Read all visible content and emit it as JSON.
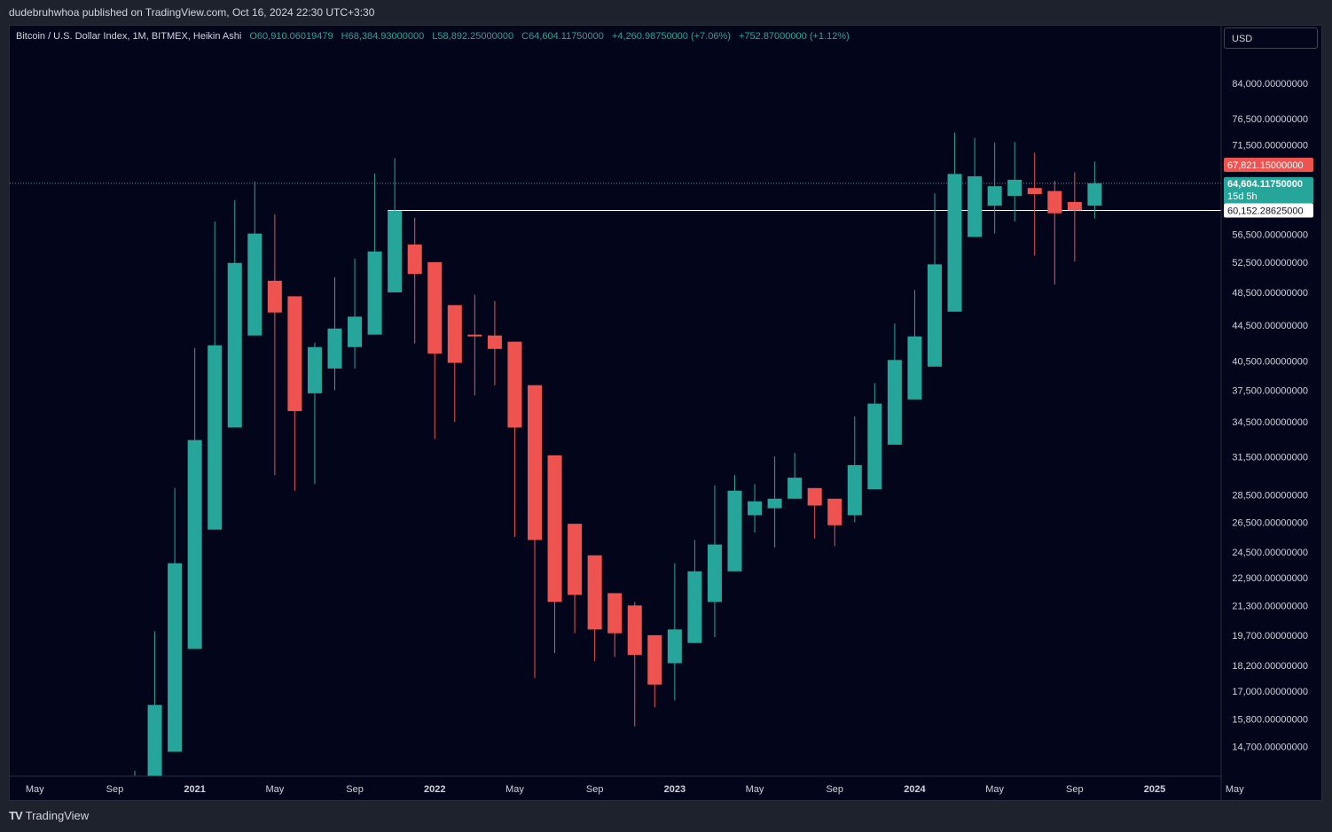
{
  "header": {
    "credit": "dudebruhwhoa published on TradingView.com, Oct 16, 2024 22:30 UTC+3:30"
  },
  "legend": {
    "symbol": "Bitcoin / U.S. Dollar Index, 1M, BITMEX, Heikin Ashi",
    "open": "O60,910.06019479",
    "high": "H68,384.93000000",
    "low": "L58,892.25000000",
    "close": "C64,604.11750000",
    "change": "+4,260.98750000 (+7.06%)",
    "change2": "+752.87000000 (+1.12%)"
  },
  "currency_button": "USD",
  "footer": {
    "brand": "TradingView",
    "brand_mark": "TV"
  },
  "colors": {
    "up": "#26a69a",
    "down": "#ef5350",
    "background": "#03051a",
    "panel": "#1e222d"
  },
  "chart_data": {
    "type": "candlestick",
    "style": "Heikin Ashi",
    "interval": "1M",
    "y_scale": "log",
    "ylim": [
      13600,
      92000
    ],
    "price_ticks": [
      "84,000.00000000",
      "76,500.00000000",
      "71,500.00000000",
      "60,152.28625000",
      "56,500.00000000",
      "52,500.00000000",
      "48,500.00000000",
      "44,500.00000000",
      "40,500.00000000",
      "37,500.00000000",
      "34,500.00000000",
      "31,500.00000000",
      "28,500.00000000",
      "26,500.00000000",
      "24,500.00000000",
      "22,900.00000000",
      "21,300.00000000",
      "19,700.00000000",
      "18,200.00000000",
      "17,000.00000000",
      "15,800.00000000",
      "14,700.00000000"
    ],
    "x_ticks": [
      "May",
      "Sep",
      "2021",
      "May",
      "Sep",
      "2022",
      "May",
      "Sep",
      "2023",
      "May",
      "Sep",
      "2024",
      "May",
      "Sep",
      "2025",
      "May"
    ],
    "price_labels": {
      "high_marker": "67,821.15000000",
      "last_price": "64,604.11750000",
      "countdown": "15d 5h",
      "horizontal_line": "60,152.28625000"
    },
    "horizontal_line_value": 60152.28625,
    "candles": [
      {
        "t": "2020-10",
        "o": 12300,
        "h": 13800,
        "l": 11000,
        "c": 12900
      },
      {
        "t": "2020-11",
        "o": 12600,
        "h": 19900,
        "l": 12200,
        "c": 16400
      },
      {
        "t": "2020-12",
        "o": 14500,
        "h": 29000,
        "l": 14500,
        "c": 23800
      },
      {
        "t": "2021-01",
        "o": 19000,
        "h": 41900,
        "l": 19000,
        "c": 32900
      },
      {
        "t": "2021-02",
        "o": 26000,
        "h": 58400,
        "l": 26000,
        "c": 42200
      },
      {
        "t": "2021-03",
        "o": 34000,
        "h": 61800,
        "l": 34000,
        "c": 52400
      },
      {
        "t": "2021-04",
        "o": 43300,
        "h": 64900,
        "l": 43300,
        "c": 56600
      },
      {
        "t": "2021-05",
        "o": 50000,
        "h": 59500,
        "l": 30000,
        "c": 46000
      },
      {
        "t": "2021-06",
        "o": 48000,
        "h": 48000,
        "l": 28800,
        "c": 35500
      },
      {
        "t": "2021-07",
        "o": 37200,
        "h": 42500,
        "l": 29300,
        "c": 42000
      },
      {
        "t": "2021-08",
        "o": 39700,
        "h": 50500,
        "l": 37500,
        "c": 44100
      },
      {
        "t": "2021-09",
        "o": 42000,
        "h": 53000,
        "l": 39700,
        "c": 45500
      },
      {
        "t": "2021-10",
        "o": 43400,
        "h": 66300,
        "l": 43400,
        "c": 54000
      },
      {
        "t": "2021-11",
        "o": 48500,
        "h": 69000,
        "l": 48500,
        "c": 60100
      },
      {
        "t": "2021-12",
        "o": 55000,
        "h": 59000,
        "l": 42400,
        "c": 50900
      },
      {
        "t": "2022-01",
        "o": 52500,
        "h": 52500,
        "l": 33000,
        "c": 41300
      },
      {
        "t": "2022-02",
        "o": 46900,
        "h": 46900,
        "l": 34500,
        "c": 40300
      },
      {
        "t": "2022-03",
        "o": 43400,
        "h": 48200,
        "l": 37000,
        "c": 43200
      },
      {
        "t": "2022-04",
        "o": 43300,
        "h": 47400,
        "l": 38000,
        "c": 41800
      },
      {
        "t": "2022-05",
        "o": 42600,
        "h": 42600,
        "l": 25500,
        "c": 34000
      },
      {
        "t": "2022-06",
        "o": 38000,
        "h": 38000,
        "l": 17600,
        "c": 25300
      },
      {
        "t": "2022-07",
        "o": 31600,
        "h": 31600,
        "l": 18800,
        "c": 21500
      },
      {
        "t": "2022-08",
        "o": 26400,
        "h": 26400,
        "l": 19800,
        "c": 21900
      },
      {
        "t": "2022-09",
        "o": 24300,
        "h": 24300,
        "l": 18400,
        "c": 20000
      },
      {
        "t": "2022-10",
        "o": 22000,
        "h": 22000,
        "l": 18600,
        "c": 19800
      },
      {
        "t": "2022-11",
        "o": 21300,
        "h": 21500,
        "l": 15500,
        "c": 18700
      },
      {
        "t": "2022-12",
        "o": 19700,
        "h": 19700,
        "l": 16300,
        "c": 17300
      },
      {
        "t": "2023-01",
        "o": 18300,
        "h": 23800,
        "l": 16600,
        "c": 20000
      },
      {
        "t": "2023-02",
        "o": 19300,
        "h": 25300,
        "l": 19300,
        "c": 23300
      },
      {
        "t": "2023-03",
        "o": 21500,
        "h": 29200,
        "l": 19600,
        "c": 25000
      },
      {
        "t": "2023-04",
        "o": 23300,
        "h": 30000,
        "l": 23300,
        "c": 28800
      },
      {
        "t": "2023-05",
        "o": 27000,
        "h": 29300,
        "l": 25800,
        "c": 28000
      },
      {
        "t": "2023-06",
        "o": 27500,
        "h": 31500,
        "l": 24800,
        "c": 28200
      },
      {
        "t": "2023-07",
        "o": 28200,
        "h": 31800,
        "l": 28200,
        "c": 29800
      },
      {
        "t": "2023-08",
        "o": 29000,
        "h": 29000,
        "l": 25400,
        "c": 27700
      },
      {
        "t": "2023-09",
        "o": 28200,
        "h": 28200,
        "l": 24900,
        "c": 26300
      },
      {
        "t": "2023-10",
        "o": 27000,
        "h": 35000,
        "l": 26500,
        "c": 30800
      },
      {
        "t": "2023-11",
        "o": 28900,
        "h": 38200,
        "l": 28900,
        "c": 36200
      },
      {
        "t": "2023-12",
        "o": 32500,
        "h": 44700,
        "l": 32500,
        "c": 40600
      },
      {
        "t": "2024-01",
        "o": 36600,
        "h": 48800,
        "l": 36600,
        "c": 43200
      },
      {
        "t": "2024-02",
        "o": 39900,
        "h": 62900,
        "l": 39900,
        "c": 52200
      },
      {
        "t": "2024-03",
        "o": 46100,
        "h": 73800,
        "l": 46100,
        "c": 66200
      },
      {
        "t": "2024-04",
        "o": 56100,
        "h": 72800,
        "l": 56100,
        "c": 65800
      },
      {
        "t": "2024-05",
        "o": 60900,
        "h": 71900,
        "l": 56600,
        "c": 64100
      },
      {
        "t": "2024-06",
        "o": 62500,
        "h": 72000,
        "l": 58400,
        "c": 65200
      },
      {
        "t": "2024-07",
        "o": 63800,
        "h": 70000,
        "l": 53400,
        "c": 62800
      },
      {
        "t": "2024-08",
        "o": 63300,
        "h": 65000,
        "l": 49500,
        "c": 59700
      },
      {
        "t": "2024-09",
        "o": 61500,
        "h": 66500,
        "l": 52600,
        "c": 60200
      },
      {
        "t": "2024-10",
        "o": 60910.06,
        "h": 68384.93,
        "l": 58892.25,
        "c": 64604.12
      }
    ]
  }
}
